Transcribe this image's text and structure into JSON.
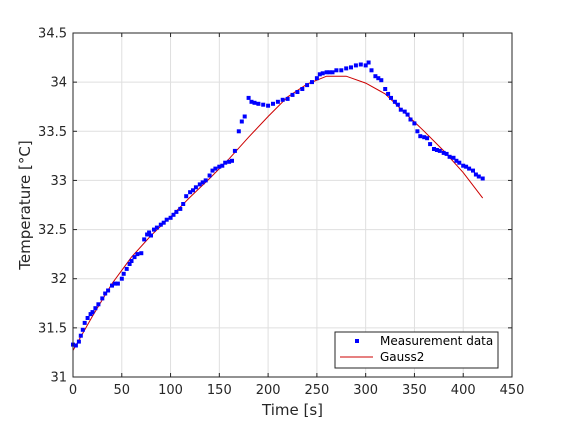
{
  "chart_data": {
    "type": "scatter",
    "title": "",
    "xlabel": "Time [s]",
    "ylabel": "Temperature [°C]",
    "xlim": [
      0,
      450
    ],
    "ylim": [
      31,
      34.5
    ],
    "xticks": [
      0,
      50,
      100,
      150,
      200,
      250,
      300,
      350,
      400,
      450
    ],
    "yticks": [
      31,
      31.5,
      32,
      32.5,
      33,
      33.5,
      34,
      34.5
    ],
    "xtick_labels": [
      "0",
      "50",
      "100",
      "150",
      "200",
      "250",
      "300",
      "350",
      "400",
      "450"
    ],
    "ytick_labels": [
      "31",
      "31.5",
      "32",
      "32.5",
      "33",
      "33.5",
      "34",
      "34.5"
    ],
    "grid": true,
    "legend_position": "bottom-right",
    "series": [
      {
        "name": "Measurement data",
        "style": "points",
        "color": "#0000ff",
        "x": [
          0,
          3,
          6,
          8,
          10,
          12,
          15,
          18,
          20,
          23,
          26,
          30,
          33,
          36,
          40,
          43,
          46,
          50,
          52,
          55,
          58,
          60,
          63,
          66,
          70,
          73,
          76,
          78,
          80,
          83,
          86,
          90,
          93,
          96,
          100,
          103,
          106,
          110,
          113,
          116,
          120,
          123,
          126,
          130,
          133,
          136,
          140,
          143,
          146,
          150,
          153,
          156,
          160,
          163,
          166,
          170,
          173,
          176,
          180,
          183,
          186,
          190,
          195,
          200,
          205,
          210,
          215,
          220,
          225,
          230,
          235,
          240,
          245,
          250,
          253,
          256,
          260,
          263,
          266,
          270,
          275,
          280,
          285,
          290,
          295,
          300,
          303,
          306,
          310,
          313,
          316,
          320,
          323,
          326,
          330,
          333,
          336,
          340,
          343,
          346,
          350,
          353,
          356,
          360,
          363,
          366,
          370,
          373,
          376,
          380,
          383,
          386,
          390,
          393,
          396,
          400,
          403,
          406,
          410,
          413,
          416,
          420
        ],
        "y": [
          31.33,
          31.32,
          31.36,
          31.42,
          31.48,
          31.55,
          31.6,
          31.64,
          31.66,
          31.7,
          31.74,
          31.8,
          31.85,
          31.88,
          31.93,
          31.95,
          31.95,
          32.0,
          32.05,
          32.1,
          32.15,
          32.18,
          32.22,
          32.25,
          32.26,
          32.4,
          32.45,
          32.47,
          32.44,
          32.5,
          32.52,
          32.55,
          32.57,
          32.6,
          32.62,
          32.65,
          32.68,
          32.71,
          32.76,
          32.84,
          32.88,
          32.9,
          32.93,
          32.96,
          32.98,
          33.0,
          33.05,
          33.1,
          33.12,
          33.14,
          33.15,
          33.18,
          33.19,
          33.2,
          33.3,
          33.5,
          33.6,
          33.65,
          33.84,
          33.8,
          33.79,
          33.78,
          33.77,
          33.76,
          33.78,
          33.8,
          33.82,
          33.83,
          33.87,
          33.9,
          33.93,
          33.97,
          34.0,
          34.04,
          34.08,
          34.09,
          34.1,
          34.1,
          34.1,
          34.12,
          34.12,
          34.14,
          34.15,
          34.17,
          34.18,
          34.17,
          34.2,
          34.12,
          34.06,
          34.04,
          34.02,
          33.93,
          33.88,
          33.84,
          33.8,
          33.77,
          33.72,
          33.7,
          33.67,
          33.62,
          33.58,
          33.5,
          33.45,
          33.44,
          33.43,
          33.37,
          33.32,
          33.31,
          33.3,
          33.28,
          33.27,
          33.24,
          33.23,
          33.2,
          33.18,
          33.15,
          33.14,
          33.12,
          33.1,
          33.06,
          33.04,
          33.02
        ]
      },
      {
        "name": "Gauss2",
        "style": "line",
        "color": "#cc0000",
        "x": [
          0,
          20,
          40,
          60,
          80,
          100,
          120,
          140,
          160,
          180,
          200,
          220,
          240,
          260,
          280,
          300,
          320,
          340,
          360,
          380,
          400,
          420
        ],
        "y": [
          31.27,
          31.62,
          31.95,
          32.22,
          32.44,
          32.63,
          32.83,
          33.02,
          33.22,
          33.44,
          33.65,
          33.85,
          33.98,
          34.06,
          34.06,
          33.99,
          33.88,
          33.69,
          33.5,
          33.3,
          33.08,
          32.82
        ]
      }
    ]
  }
}
